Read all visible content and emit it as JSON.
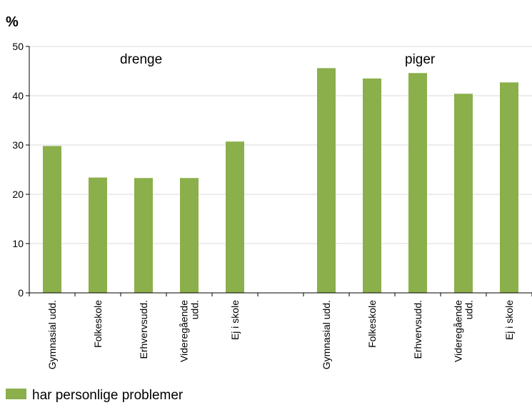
{
  "chart_data": {
    "type": "bar",
    "unit_label": "%",
    "ylim": [
      0,
      50
    ],
    "yticks": [
      0,
      10,
      20,
      30,
      40,
      50
    ],
    "grid": true,
    "bar_color": "#8BAF4B",
    "grid_color": "#D9D9D9",
    "categories": [
      "Gymnasial udd.",
      "Folkeskole",
      "Erhvervsudd.",
      "Videregående udd.",
      "Ej i skole",
      "",
      "Gymnasial udd.",
      "Folkeskole",
      "Erhvervsudd.",
      "Videregående udd.",
      "Ej i skole"
    ],
    "series": [
      {
        "name": "har personlige problemer",
        "values": [
          29.8,
          23.4,
          23.3,
          23.3,
          30.7,
          null,
          45.6,
          43.5,
          44.6,
          40.4,
          42.7
        ]
      }
    ],
    "group_labels": [
      "drenge",
      "piger"
    ],
    "legend": {
      "position": "bottom-left",
      "label": "har personlige problemer"
    }
  }
}
